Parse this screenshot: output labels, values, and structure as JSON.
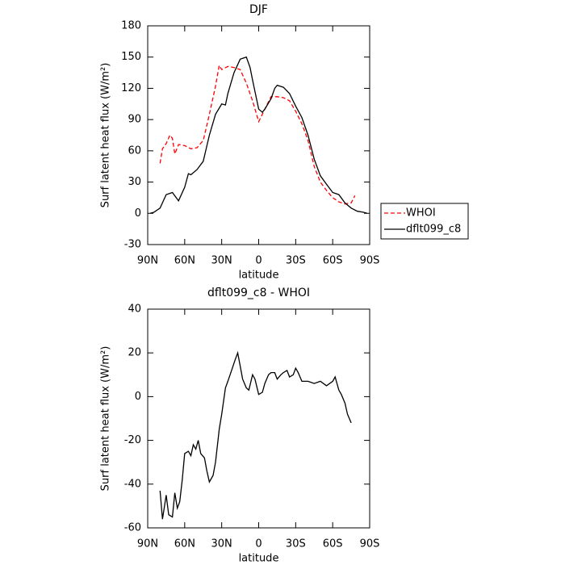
{
  "chart_data": [
    {
      "type": "line",
      "title": "DJF",
      "xlabel": "latitude",
      "ylabel": "Surf latent heat flux (W/m²)",
      "xlim": [
        90,
        -90
      ],
      "xticks": [
        {
          "value": 90,
          "label": "90N"
        },
        {
          "value": 60,
          "label": "60N"
        },
        {
          "value": 30,
          "label": "30N"
        },
        0,
        {
          "value": -30,
          "label": "30S"
        },
        {
          "value": -60,
          "label": "60S"
        },
        {
          "value": -90,
          "label": "90S"
        }
      ],
      "ylim": [
        -30,
        180
      ],
      "yticks": [
        -30,
        0,
        30,
        60,
        90,
        120,
        150,
        180
      ],
      "legend": "right",
      "series": [
        {
          "name": "WHOI",
          "color": "#ff0000",
          "style": "dashed",
          "x": [
            80,
            78,
            75,
            72,
            70,
            68,
            65,
            60,
            55,
            50,
            45,
            40,
            35,
            32,
            30,
            25,
            20,
            15,
            10,
            5,
            0,
            -5,
            -10,
            -15,
            -20,
            -25,
            -30,
            -35,
            -40,
            -45,
            -50,
            -55,
            -60,
            -65,
            -70,
            -75,
            -78
          ],
          "values": [
            48,
            62,
            67,
            75,
            72,
            57,
            66,
            65,
            62,
            63,
            70,
            95,
            122,
            142,
            138,
            141,
            140,
            138,
            125,
            108,
            88,
            100,
            112,
            112,
            111,
            108,
            98,
            86,
            70,
            45,
            30,
            22,
            15,
            11,
            9,
            10,
            17
          ]
        },
        {
          "name": "dflt099_c8",
          "color": "#000000",
          "style": "solid",
          "x": [
            88,
            85,
            80,
            75,
            70,
            65,
            60,
            57,
            55,
            50,
            45,
            40,
            35,
            30,
            27,
            25,
            20,
            15,
            10,
            7,
            5,
            0,
            -3,
            -5,
            -10,
            -13,
            -15,
            -20,
            -25,
            -30,
            -35,
            -40,
            -45,
            -50,
            -55,
            -60,
            -65,
            -70,
            -75,
            -80,
            -85,
            -88
          ],
          "values": [
            0,
            1,
            5,
            18,
            20,
            12,
            25,
            38,
            37,
            42,
            50,
            75,
            95,
            105,
            104,
            115,
            135,
            148,
            150,
            140,
            128,
            100,
            97,
            100,
            110,
            120,
            123,
            121,
            115,
            103,
            92,
            75,
            52,
            36,
            28,
            20,
            18,
            10,
            5,
            2,
            1,
            0
          ]
        }
      ]
    },
    {
      "type": "line",
      "title": "dflt099_c8 - WHOI",
      "xlabel": "latitude",
      "ylabel": "Surf latent heat flux (W/m²)",
      "xlim": [
        90,
        -90
      ],
      "xticks": [
        {
          "value": 90,
          "label": "90N"
        },
        {
          "value": 60,
          "label": "60N"
        },
        {
          "value": 30,
          "label": "30N"
        },
        0,
        {
          "value": -30,
          "label": "30S"
        },
        {
          "value": -60,
          "label": "60S"
        },
        {
          "value": -90,
          "label": "90S"
        }
      ],
      "ylim": [
        -60,
        40
      ],
      "yticks": [
        -60,
        -40,
        -20,
        0,
        20,
        40
      ],
      "series": [
        {
          "color": "#000000",
          "style": "solid",
          "x": [
            80,
            78,
            75,
            73,
            70,
            68,
            66,
            64,
            62,
            60,
            57,
            55,
            53,
            51,
            49,
            47,
            44,
            42,
            40,
            37,
            35,
            32,
            30,
            27,
            25,
            22,
            19,
            17,
            15,
            13,
            10,
            8,
            5,
            3,
            0,
            -3,
            -5,
            -8,
            -10,
            -13,
            -15,
            -18,
            -20,
            -23,
            -25,
            -28,
            -30,
            -32,
            -35,
            -40,
            -45,
            -50,
            -55,
            -60,
            -62,
            -65,
            -67,
            -70,
            -72,
            -75
          ],
          "values": [
            -43,
            -56,
            -45,
            -54,
            -55,
            -44,
            -51,
            -48,
            -38,
            -26,
            -25,
            -27,
            -22,
            -24,
            -20,
            -26,
            -28,
            -34,
            -39,
            -36,
            -30,
            -15,
            -8,
            4,
            7,
            12,
            17,
            20,
            14,
            8,
            4,
            3,
            10,
            8,
            1,
            2,
            6,
            10,
            11,
            11,
            8,
            10,
            11,
            12,
            9,
            10,
            13,
            11,
            7,
            7,
            6,
            7,
            5,
            7,
            9,
            3,
            1,
            -3,
            -8,
            -12
          ]
        }
      ]
    }
  ]
}
